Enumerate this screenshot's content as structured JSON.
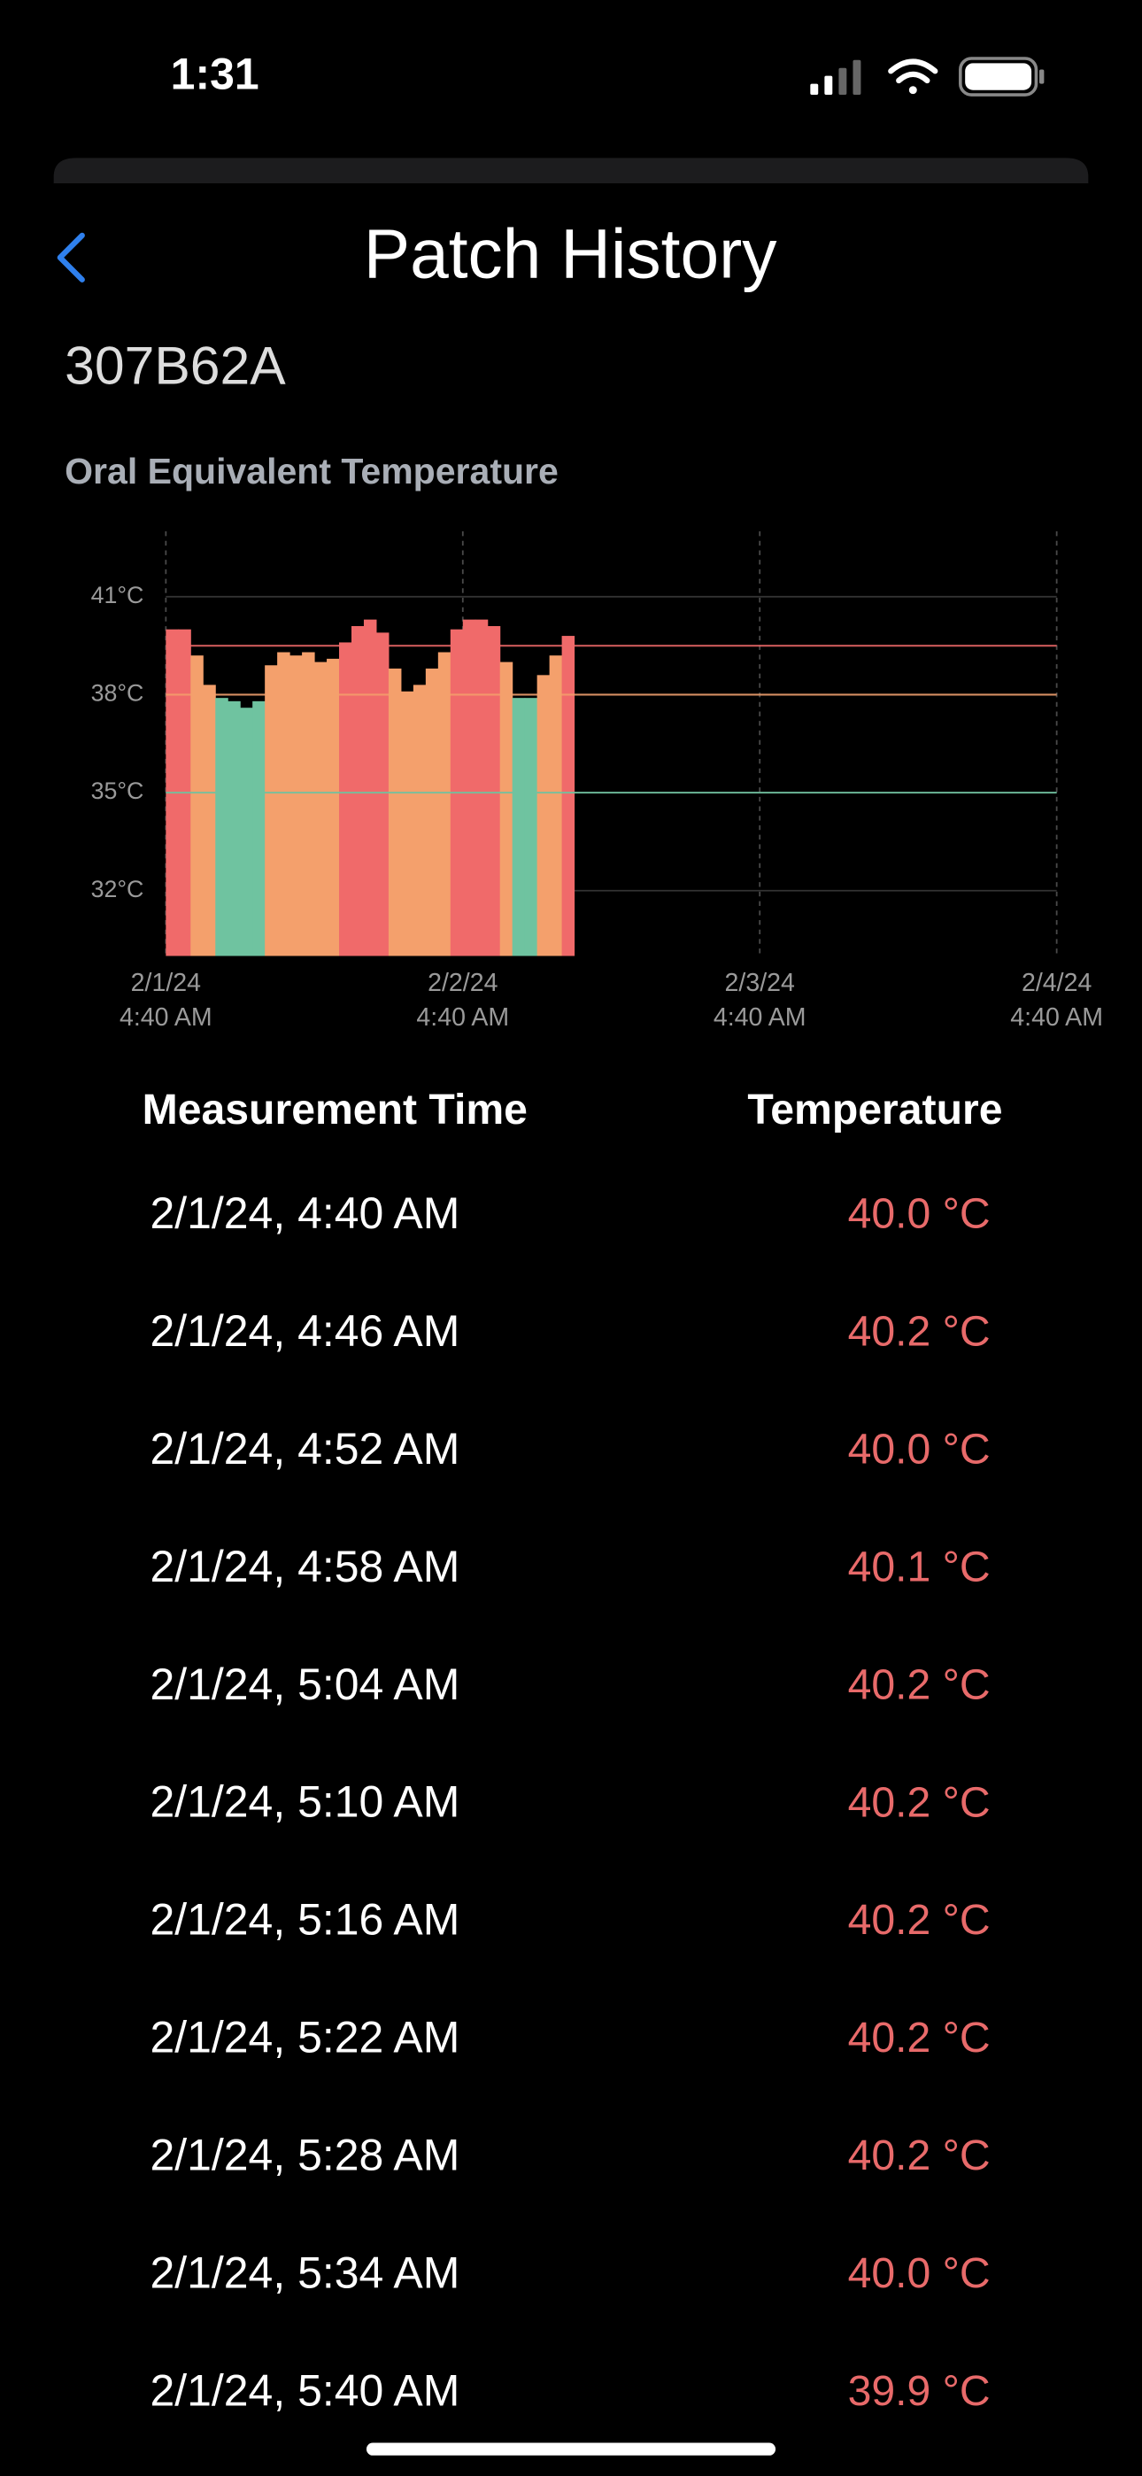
{
  "status_bar": {
    "time": "1:31"
  },
  "header": {
    "title": "Patch History"
  },
  "device_id": "307B62A",
  "chart_data": {
    "type": "bar",
    "title": "Oral Equivalent Temperature",
    "x": [
      0,
      1,
      2,
      3,
      4,
      5,
      6,
      7,
      8,
      9,
      10,
      11,
      12,
      13,
      14,
      15,
      16,
      17,
      18,
      19,
      20,
      21,
      22,
      23,
      24,
      25,
      26,
      27,
      28,
      29,
      30,
      31,
      32
    ],
    "values": [
      40.0,
      40.0,
      39.2,
      38.3,
      37.9,
      37.8,
      37.6,
      37.8,
      38.9,
      39.3,
      39.2,
      39.3,
      39.0,
      39.1,
      39.6,
      40.1,
      40.3,
      39.9,
      38.8,
      38.1,
      38.3,
      38.8,
      39.3,
      40.0,
      40.3,
      40.3,
      40.1,
      39.0,
      37.9,
      37.9,
      38.6,
      39.2,
      39.8
    ],
    "xlim": [
      0,
      72
    ],
    "xticks": [
      {
        "value": 0,
        "label": "2/1/24 4:40 AM"
      },
      {
        "value": 24,
        "label": "2/2/24 4:40 AM"
      },
      {
        "value": 48,
        "label": "2/3/24 4:40 AM"
      },
      {
        "value": 72,
        "label": "2/4/24 4:40 AM"
      }
    ],
    "ylim": [
      30,
      43
    ],
    "yticks": [
      {
        "value": 32,
        "label": "32°C"
      },
      {
        "value": 35,
        "label": "35°C"
      },
      {
        "value": 38,
        "label": "38°C"
      },
      {
        "value": 41,
        "label": "41°C"
      }
    ],
    "thresholds": [
      {
        "value": 39.5,
        "color": "#f06a6a"
      },
      {
        "value": 38,
        "color": "#f4a06c"
      },
      {
        "value": 35,
        "color": "#6fc3a0"
      }
    ],
    "grid": true
  },
  "table": {
    "headers": [
      "Measurement Time",
      "Temperature"
    ],
    "rows": [
      [
        "2/1/24, 4:40 AM",
        "40.0 °C"
      ],
      [
        "2/1/24, 4:46 AM",
        "40.2 °C"
      ],
      [
        "2/1/24, 4:52 AM",
        "40.0 °C"
      ],
      [
        "2/1/24, 4:58 AM",
        "40.1 °C"
      ],
      [
        "2/1/24, 5:04 AM",
        "40.2 °C"
      ],
      [
        "2/1/24, 5:10 AM",
        "40.2 °C"
      ],
      [
        "2/1/24, 5:16 AM",
        "40.2 °C"
      ],
      [
        "2/1/24, 5:22 AM",
        "40.2 °C"
      ],
      [
        "2/1/24, 5:28 AM",
        "40.2 °C"
      ],
      [
        "2/1/24, 5:34 AM",
        "40.0 °C"
      ],
      [
        "2/1/24, 5:40 AM",
        "39.9 °C"
      ]
    ]
  }
}
